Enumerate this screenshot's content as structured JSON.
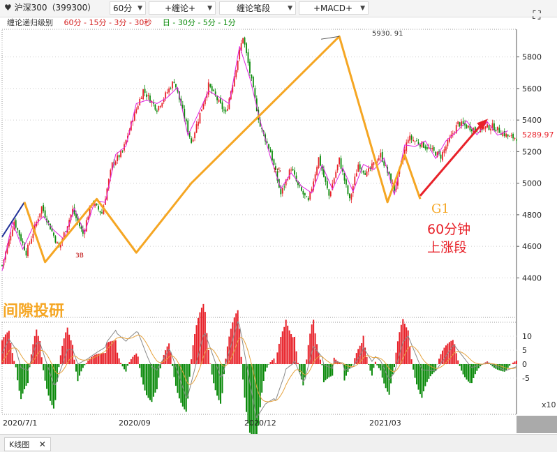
{
  "toolbar": {
    "symbol": "沪深300（399300）",
    "period": "60分",
    "btn_chanlun": "+缠论+",
    "btn_bi": "缠论笔段",
    "btn_macd": "+MACD+"
  },
  "subheader": {
    "label": "缠论递归级别",
    "red_levels": "60分 - 15分 - 3分 - 30秒",
    "green_levels": "日 - 30分 - 5分 - 1分"
  },
  "colors": {
    "up": "#e8222a",
    "down": "#0a8a0a",
    "segment": "#f5a623",
    "stroke": "#e020e0",
    "arrow": "#e8222a",
    "macd_dif": "#888888",
    "macd_dea": "#e6a23c"
  },
  "annotations": {
    "peak_label": "5930. 91",
    "last_price": "5289.97",
    "g1": "G1",
    "note_line1": "60分钟",
    "note_line2": "上涨段",
    "watermark": "间隙投研",
    "label_3b": "3B",
    "label_1s": "1S"
  },
  "macd_axis_unit": "x10",
  "bottom_tab": "K线图",
  "chart_data": [
    {
      "type": "line",
      "title": "",
      "xlabel": "",
      "ylabel": "",
      "x_ticks": [
        "2020/7/1",
        "2020/09",
        "2020/12",
        "2021/03"
      ],
      "y_ticks": [
        4400,
        4600,
        4800,
        5000,
        5200,
        5400,
        5600,
        5800
      ],
      "ylim": [
        4150,
        5975
      ],
      "grid": true,
      "series": [
        {
          "x": [
            0,
            7,
            14,
            23,
            33,
            41,
            47,
            52,
            58,
            64,
            70,
            76,
            82,
            90,
            100,
            110,
            120,
            130,
            140,
            150,
            156,
            162,
            168,
            172,
            178,
            184,
            190,
            196,
            202,
            207,
            212,
            220,
            228,
            236,
            245,
            255,
            265,
            275,
            285,
            295
          ],
          "values": [
            4480,
            4760,
            4560,
            4850,
            4590,
            4830,
            4680,
            4880,
            4810,
            5120,
            5200,
            5410,
            5590,
            5470,
            5650,
            5260,
            5620,
            5440,
            5930,
            5360,
            5200,
            4930,
            5100,
            4980,
            4880,
            5160,
            4920,
            5150,
            4890,
            5120,
            5060,
            5180,
            4960,
            5290,
            5240,
            5170,
            5380,
            5340,
            5360,
            5290
          ]
        }
      ],
      "segment_points": [
        [
          0,
          4660
        ],
        [
          13,
          4880
        ],
        [
          25,
          4500
        ],
        [
          55,
          4900
        ],
        [
          78,
          4560
        ],
        [
          110,
          5000
        ],
        [
          196,
          5930
        ],
        [
          224,
          4880
        ],
        [
          234,
          5180
        ],
        [
          243,
          4900
        ]
      ],
      "macd": {
        "ylim": [
          -18,
          15
        ],
        "y_ticks": [
          10,
          5,
          0,
          -5
        ]
      }
    }
  ]
}
